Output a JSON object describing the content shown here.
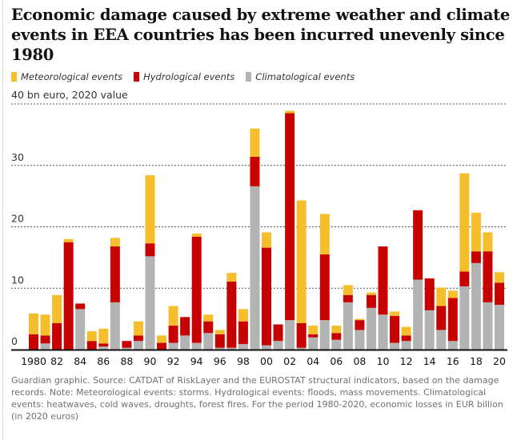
{
  "title": "Economic damage caused by extreme weather and climate events in EEA countries has been incurred unevenly since 1980",
  "legend": [
    {
      "label": "Meteorological events",
      "color": "#f5be2c"
    },
    {
      "label": "Hydrological events",
      "color": "#c70000"
    },
    {
      "label": "Climatological events",
      "color": "#b3b3b3"
    }
  ],
  "y_axis_label": "40 bn euro, 2020 value",
  "note": "Guardian graphic. Source: CATDAT of RiskLayer and the EUROSTAT structural indicators, based on the damage records. Note: Meteorological events: storms. Hydrological events: floods, mass movements. Climatological events: heatwaves, cold waves, droughts, forest fires. For the period 1980-2020, economic losses in EUR billion (in 2020 euros)",
  "chart_data": {
    "type": "bar",
    "stacked": true,
    "ylabel": "40 bn euro, 2020 value",
    "ylim": [
      0,
      40
    ],
    "y_ticks": [
      0,
      10,
      20,
      30
    ],
    "grid": true,
    "legend_position": "top-left",
    "x": [
      1980,
      1981,
      1982,
      1983,
      1984,
      1985,
      1986,
      1987,
      1988,
      1989,
      1990,
      1991,
      1992,
      1993,
      1994,
      1995,
      1996,
      1997,
      1998,
      1999,
      2000,
      2001,
      2002,
      2003,
      2004,
      2005,
      2006,
      2007,
      2008,
      2009,
      2010,
      2011,
      2012,
      2013,
      2014,
      2015,
      2016,
      2017,
      2018,
      2019,
      2020
    ],
    "x_tick_labels": [
      "1980",
      "82",
      "84",
      "86",
      "88",
      "90",
      "92",
      "94",
      "96",
      "98",
      "00",
      "02",
      "04",
      "06",
      "08",
      "10",
      "12",
      "14",
      "16",
      "18",
      "20"
    ],
    "series": [
      {
        "name": "Climatological events",
        "color": "#b3b3b3",
        "values": [
          0,
          1.0,
          0,
          0,
          6.6,
          0,
          0.5,
          7.7,
          0.3,
          1.4,
          15.2,
          0,
          1.1,
          2.3,
          1.1,
          2.7,
          0.3,
          0.3,
          0.9,
          26.6,
          0.7,
          1.4,
          4.8,
          0.3,
          2.0,
          4.8,
          1.6,
          7.7,
          3.2,
          6.8,
          5.7,
          1.1,
          1.4,
          11.4,
          6.4,
          3.2,
          1.4,
          10.3,
          14.1,
          7.7,
          7.3
        ]
      },
      {
        "name": "Hydrological events",
        "color": "#c70000",
        "values": [
          2.5,
          1.3,
          4.3,
          17.5,
          0.9,
          1.4,
          0.5,
          9.1,
          1.1,
          0.9,
          2.1,
          1.1,
          2.8,
          3.0,
          17.3,
          1.9,
          2.2,
          10.8,
          3.7,
          4.8,
          15.9,
          2.7,
          33.7,
          4.0,
          0.5,
          10.7,
          1.1,
          1.2,
          1.6,
          2.1,
          11.1,
          4.4,
          0.9,
          11.3,
          5.2,
          3.9,
          7.0,
          2.4,
          1.9,
          8.3,
          3.6
        ]
      },
      {
        "name": "Meteorological events",
        "color": "#f5be2c",
        "values": [
          3.4,
          3.4,
          4.6,
          0.5,
          0,
          1.6,
          2.4,
          1.4,
          0,
          2.3,
          11.1,
          1.2,
          3.2,
          0,
          0.5,
          1.1,
          0.7,
          1.4,
          2.0,
          4.6,
          2.5,
          0,
          0.4,
          20.0,
          1.4,
          6.6,
          1.2,
          1.6,
          0.2,
          0.4,
          0,
          0.7,
          1.4,
          0,
          0,
          3.0,
          1.2,
          16.0,
          6.3,
          3.1,
          1.7
        ]
      }
    ]
  }
}
